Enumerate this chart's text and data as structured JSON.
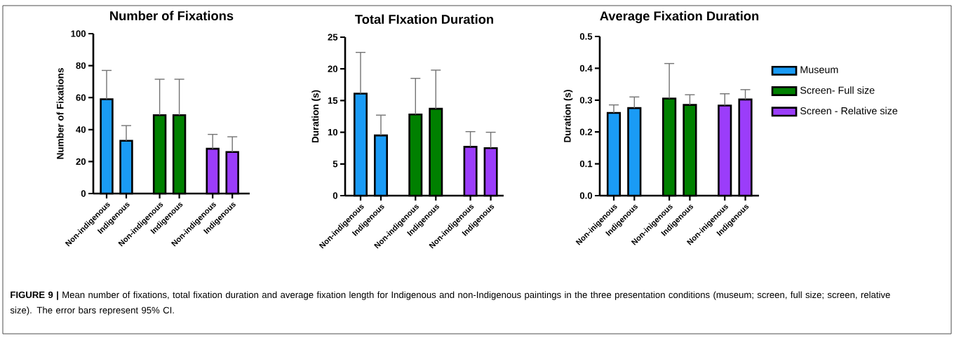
{
  "chart_data": [
    {
      "type": "bar",
      "title": "Number of Fixations",
      "ylabel": "Number of Fixations",
      "categories": [
        "Non-indigenous",
        "Indigenous",
        "Non-indigenous",
        "Indigenous",
        "Non-indigenous",
        "Indigenous"
      ],
      "series": [
        {
          "color": "#1a9bf5",
          "values": [
            59,
            33,
            null,
            null,
            null,
            null
          ],
          "errors": [
            [
              59,
              77
            ],
            [
              33,
              42.5
            ],
            null,
            null,
            null,
            null
          ]
        },
        {
          "color": "#008000",
          "values": [
            null,
            null,
            49,
            49,
            null,
            null
          ],
          "errors": [
            null,
            null,
            [
              49,
              71.5
            ],
            [
              49,
              71.5
            ],
            null,
            null
          ]
        },
        {
          "color": "#9b3dfa",
          "values": [
            null,
            null,
            null,
            null,
            28,
            26
          ],
          "errors": [
            null,
            null,
            null,
            null,
            [
              28,
              37
            ],
            [
              26,
              35.5
            ]
          ]
        }
      ],
      "ylim": [
        0,
        100
      ],
      "yticks": [
        0,
        20,
        40,
        60,
        80,
        100
      ],
      "annotations": [
        "**FIGURE 9 |** Mean number of fixations, total fixation duration and average fixation length for Indigenous and non-Indigenous paintings in the three presentation conditions (museum; screen, full size; screen, relative size). The error bars represent 95% CI."
      ]
    },
    {
      "type": "bar",
      "title": "Total FIxation Duration",
      "ylabel": "Duration (s)",
      "categories": [
        "Non-indigenous",
        "Indigenous",
        "Non-indigenous",
        "Indigenous",
        "Non-indigenous",
        "Indigenous"
      ],
      "series": [
        {
          "color": "#1a9bf5",
          "values": [
            16.1,
            9.5,
            null,
            null,
            null,
            null
          ],
          "errors": [
            [
              16.1,
              22.6
            ],
            [
              9.5,
              12.7
            ],
            null,
            null,
            null,
            null
          ]
        },
        {
          "color": "#008000",
          "values": [
            null,
            null,
            12.8,
            13.7,
            null,
            null
          ],
          "errors": [
            null,
            null,
            [
              12.8,
              18.5
            ],
            [
              13.7,
              19.8
            ],
            null,
            null
          ]
        },
        {
          "color": "#9b3dfa",
          "values": [
            null,
            null,
            null,
            null,
            7.7,
            7.5
          ],
          "errors": [
            null,
            null,
            null,
            null,
            [
              7.7,
              10.1
            ],
            [
              7.5,
              10.0
            ]
          ]
        }
      ],
      "ylim": [
        0,
        25
      ],
      "yticks": [
        0,
        5,
        10,
        15,
        20,
        25
      ]
    },
    {
      "type": "bar",
      "title": "Average Fixation Duration",
      "ylabel": "Duration (s)",
      "categories": [
        "Non-inigenous",
        "Indigenous",
        "Non-inigenous",
        "Indigenous",
        "Non-inigenous",
        "Indigenous"
      ],
      "series": [
        {
          "name": "Museum",
          "color": "#1a9bf5",
          "values": [
            0.26,
            0.275,
            null,
            null,
            null,
            null
          ],
          "errors": [
            [
              0.26,
              0.285
            ],
            [
              0.275,
              0.31
            ],
            null,
            null,
            null,
            null
          ]
        },
        {
          "name": "Screen- Full size",
          "color": "#008000",
          "values": [
            null,
            null,
            0.305,
            0.285,
            null,
            null
          ],
          "errors": [
            null,
            null,
            [
              0.305,
              0.415
            ],
            [
              0.285,
              0.317
            ],
            null,
            null
          ]
        },
        {
          "name": "Screen - Relative size",
          "color": "#9b3dfa",
          "values": [
            null,
            null,
            null,
            null,
            0.283,
            0.302
          ],
          "errors": [
            null,
            null,
            null,
            null,
            [
              0.283,
              0.32
            ],
            [
              0.302,
              0.333
            ]
          ]
        }
      ],
      "ylim": [
        0,
        0.5
      ],
      "yticks": [
        {
          "value": 0,
          "label": "0.0"
        },
        0.1,
        0.2,
        0.3,
        0.4,
        0.5
      ],
      "legend": "right"
    }
  ]
}
